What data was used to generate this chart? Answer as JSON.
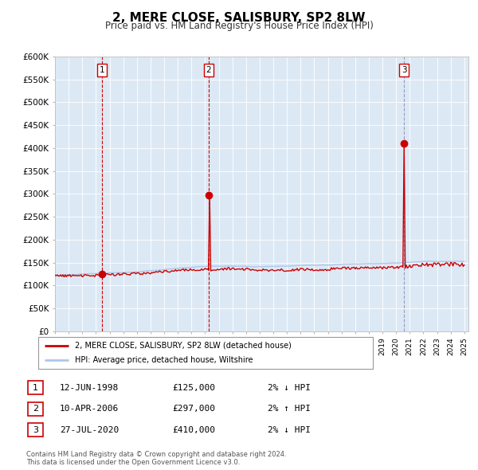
{
  "title": "2, MERE CLOSE, SALISBURY, SP2 8LW",
  "subtitle": "Price paid vs. HM Land Registry's House Price Index (HPI)",
  "ylim": [
    0,
    600000
  ],
  "yticks": [
    0,
    50000,
    100000,
    150000,
    200000,
    250000,
    300000,
    350000,
    400000,
    450000,
    500000,
    550000,
    600000
  ],
  "ytick_labels": [
    "£0",
    "£50K",
    "£100K",
    "£150K",
    "£200K",
    "£250K",
    "£300K",
    "£350K",
    "£400K",
    "£450K",
    "£500K",
    "£550K",
    "£600K"
  ],
  "hpi_color": "#aec6e8",
  "price_color": "#cc0000",
  "plot_bg": "#dce9f5",
  "grid_color": "#ffffff",
  "sale_points": [
    {
      "year": 1998.45,
      "price": 125000,
      "label": "1"
    },
    {
      "year": 2006.27,
      "price": 297000,
      "label": "2"
    },
    {
      "year": 2020.57,
      "price": 410000,
      "label": "3"
    }
  ],
  "vline_colors": [
    "#cc0000",
    "#cc0000",
    "#aaaacc"
  ],
  "legend_entries": [
    {
      "label": "2, MERE CLOSE, SALISBURY, SP2 8LW (detached house)",
      "color": "#cc0000"
    },
    {
      "label": "HPI: Average price, detached house, Wiltshire",
      "color": "#aec6e8"
    }
  ],
  "table_rows": [
    {
      "num": "1",
      "date": "12-JUN-1998",
      "price": "£125,000",
      "hpi": "2% ↓ HPI"
    },
    {
      "num": "2",
      "date": "10-APR-2006",
      "price": "£297,000",
      "hpi": "2% ↑ HPI"
    },
    {
      "num": "3",
      "date": "27-JUL-2020",
      "price": "£410,000",
      "hpi": "2% ↓ HPI"
    }
  ],
  "footer": "Contains HM Land Registry data © Crown copyright and database right 2024.\nThis data is licensed under the Open Government Licence v3.0."
}
